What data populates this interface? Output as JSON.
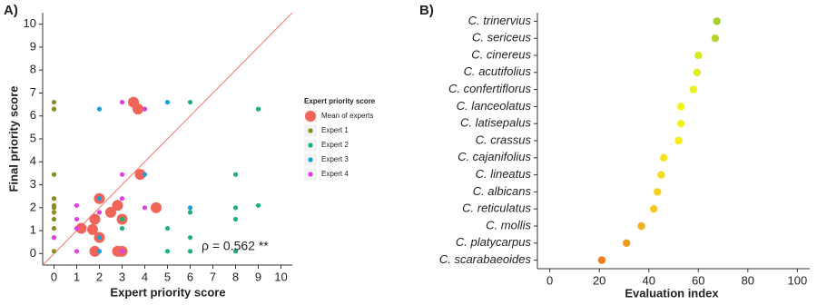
{
  "chart_data": [
    {
      "type": "scatter",
      "title": "A)",
      "xlabel": "Expert priority score",
      "ylabel": "Final priority score",
      "legend_title": "Expert priority score",
      "annotation": "ρ = 0.562 **",
      "identity_line_color": "#f4796f",
      "xlim": [
        -0.5,
        10.5
      ],
      "ylim": [
        -0.5,
        10.5
      ],
      "xticks": [
        0,
        1,
        2,
        3,
        4,
        5,
        6,
        7,
        8,
        9,
        10
      ],
      "yticks": [
        0,
        1,
        2,
        3,
        4,
        5,
        6,
        7,
        8,
        9,
        10
      ],
      "series": [
        {
          "name": "Mean of experts",
          "color": "#f0645a",
          "size": "large",
          "x": [
            3.5,
            3.7,
            3.8,
            4.5,
            2.8,
            2.0,
            2.5,
            3.0,
            1.8,
            1.2,
            1.7,
            2.0,
            1.8,
            2.8,
            3.0
          ],
          "y": [
            6.6,
            6.3,
            3.45,
            2.0,
            2.1,
            2.4,
            1.8,
            1.5,
            1.5,
            1.1,
            1.05,
            0.7,
            0.1,
            0.1,
            0.1
          ]
        },
        {
          "name": "Expert 1",
          "color": "#8c8c1a",
          "size": "small",
          "x": [
            0,
            0,
            0,
            0,
            0,
            0,
            0,
            0,
            0,
            0,
            0
          ],
          "y": [
            6.6,
            6.3,
            3.45,
            2.4,
            2.1,
            2.0,
            1.8,
            1.5,
            1.1,
            0.7,
            0.1
          ]
        },
        {
          "name": "Expert 2",
          "color": "#1bb17a",
          "size": "small",
          "x": [
            6,
            9,
            8,
            8,
            8,
            9,
            5,
            6,
            6,
            3,
            5,
            6,
            8,
            3
          ],
          "y": [
            6.6,
            6.3,
            3.45,
            2.0,
            1.5,
            2.1,
            1.1,
            0.7,
            1.8,
            1.1,
            0.1,
            0.1,
            0.1,
            1.5
          ]
        },
        {
          "name": "Expert 3",
          "color": "#1a9fd8",
          "size": "small",
          "x": [
            2,
            5,
            4,
            6,
            2,
            2,
            2,
            3,
            4
          ],
          "y": [
            6.3,
            6.6,
            3.45,
            2.0,
            2.4,
            0.7,
            0.1,
            0.1,
            6.3
          ]
        },
        {
          "name": "Expert 4",
          "color": "#e040e0",
          "size": "small",
          "x": [
            3,
            4,
            3,
            1,
            1,
            0,
            1,
            3,
            1,
            2,
            4,
            3
          ],
          "y": [
            6.6,
            6.3,
            3.45,
            1.5,
            1.1,
            0.7,
            2.1,
            2.4,
            0.1,
            1.8,
            2.0,
            0.1
          ]
        }
      ]
    },
    {
      "type": "dot",
      "title": "B)",
      "xlabel": "Evaluation index",
      "categories": [
        "C. trinervius",
        "C. sericeus",
        "C. cinereus",
        "C. acutifolius",
        "C. confertiflorus",
        "C. lanceolatus",
        "C. latisepalus",
        "C. crassus",
        "C. cajanifolius",
        "C. lineatus",
        "C. albicans",
        "C. reticulatus",
        "C. mollis",
        "C. platycarpus",
        "C. scarabaeoides"
      ],
      "values": [
        67.5,
        66.8,
        60,
        59.5,
        58,
        53,
        53,
        52,
        46,
        45,
        43.5,
        42,
        37,
        31,
        21
      ],
      "colors": [
        "#a6cf2f",
        "#b2d42c",
        "#d9e92a",
        "#e0ec24",
        "#e8ef22",
        "#f5f216",
        "#f5f216",
        "#f7ee15",
        "#f6e41a",
        "#f7dc1c",
        "#f5d21c",
        "#f3c91f",
        "#f1b41e",
        "#ee9b1f",
        "#ec7f1b"
      ],
      "xlim": [
        -5,
        105
      ],
      "xticks": [
        0,
        20,
        40,
        60,
        80,
        100
      ]
    }
  ]
}
